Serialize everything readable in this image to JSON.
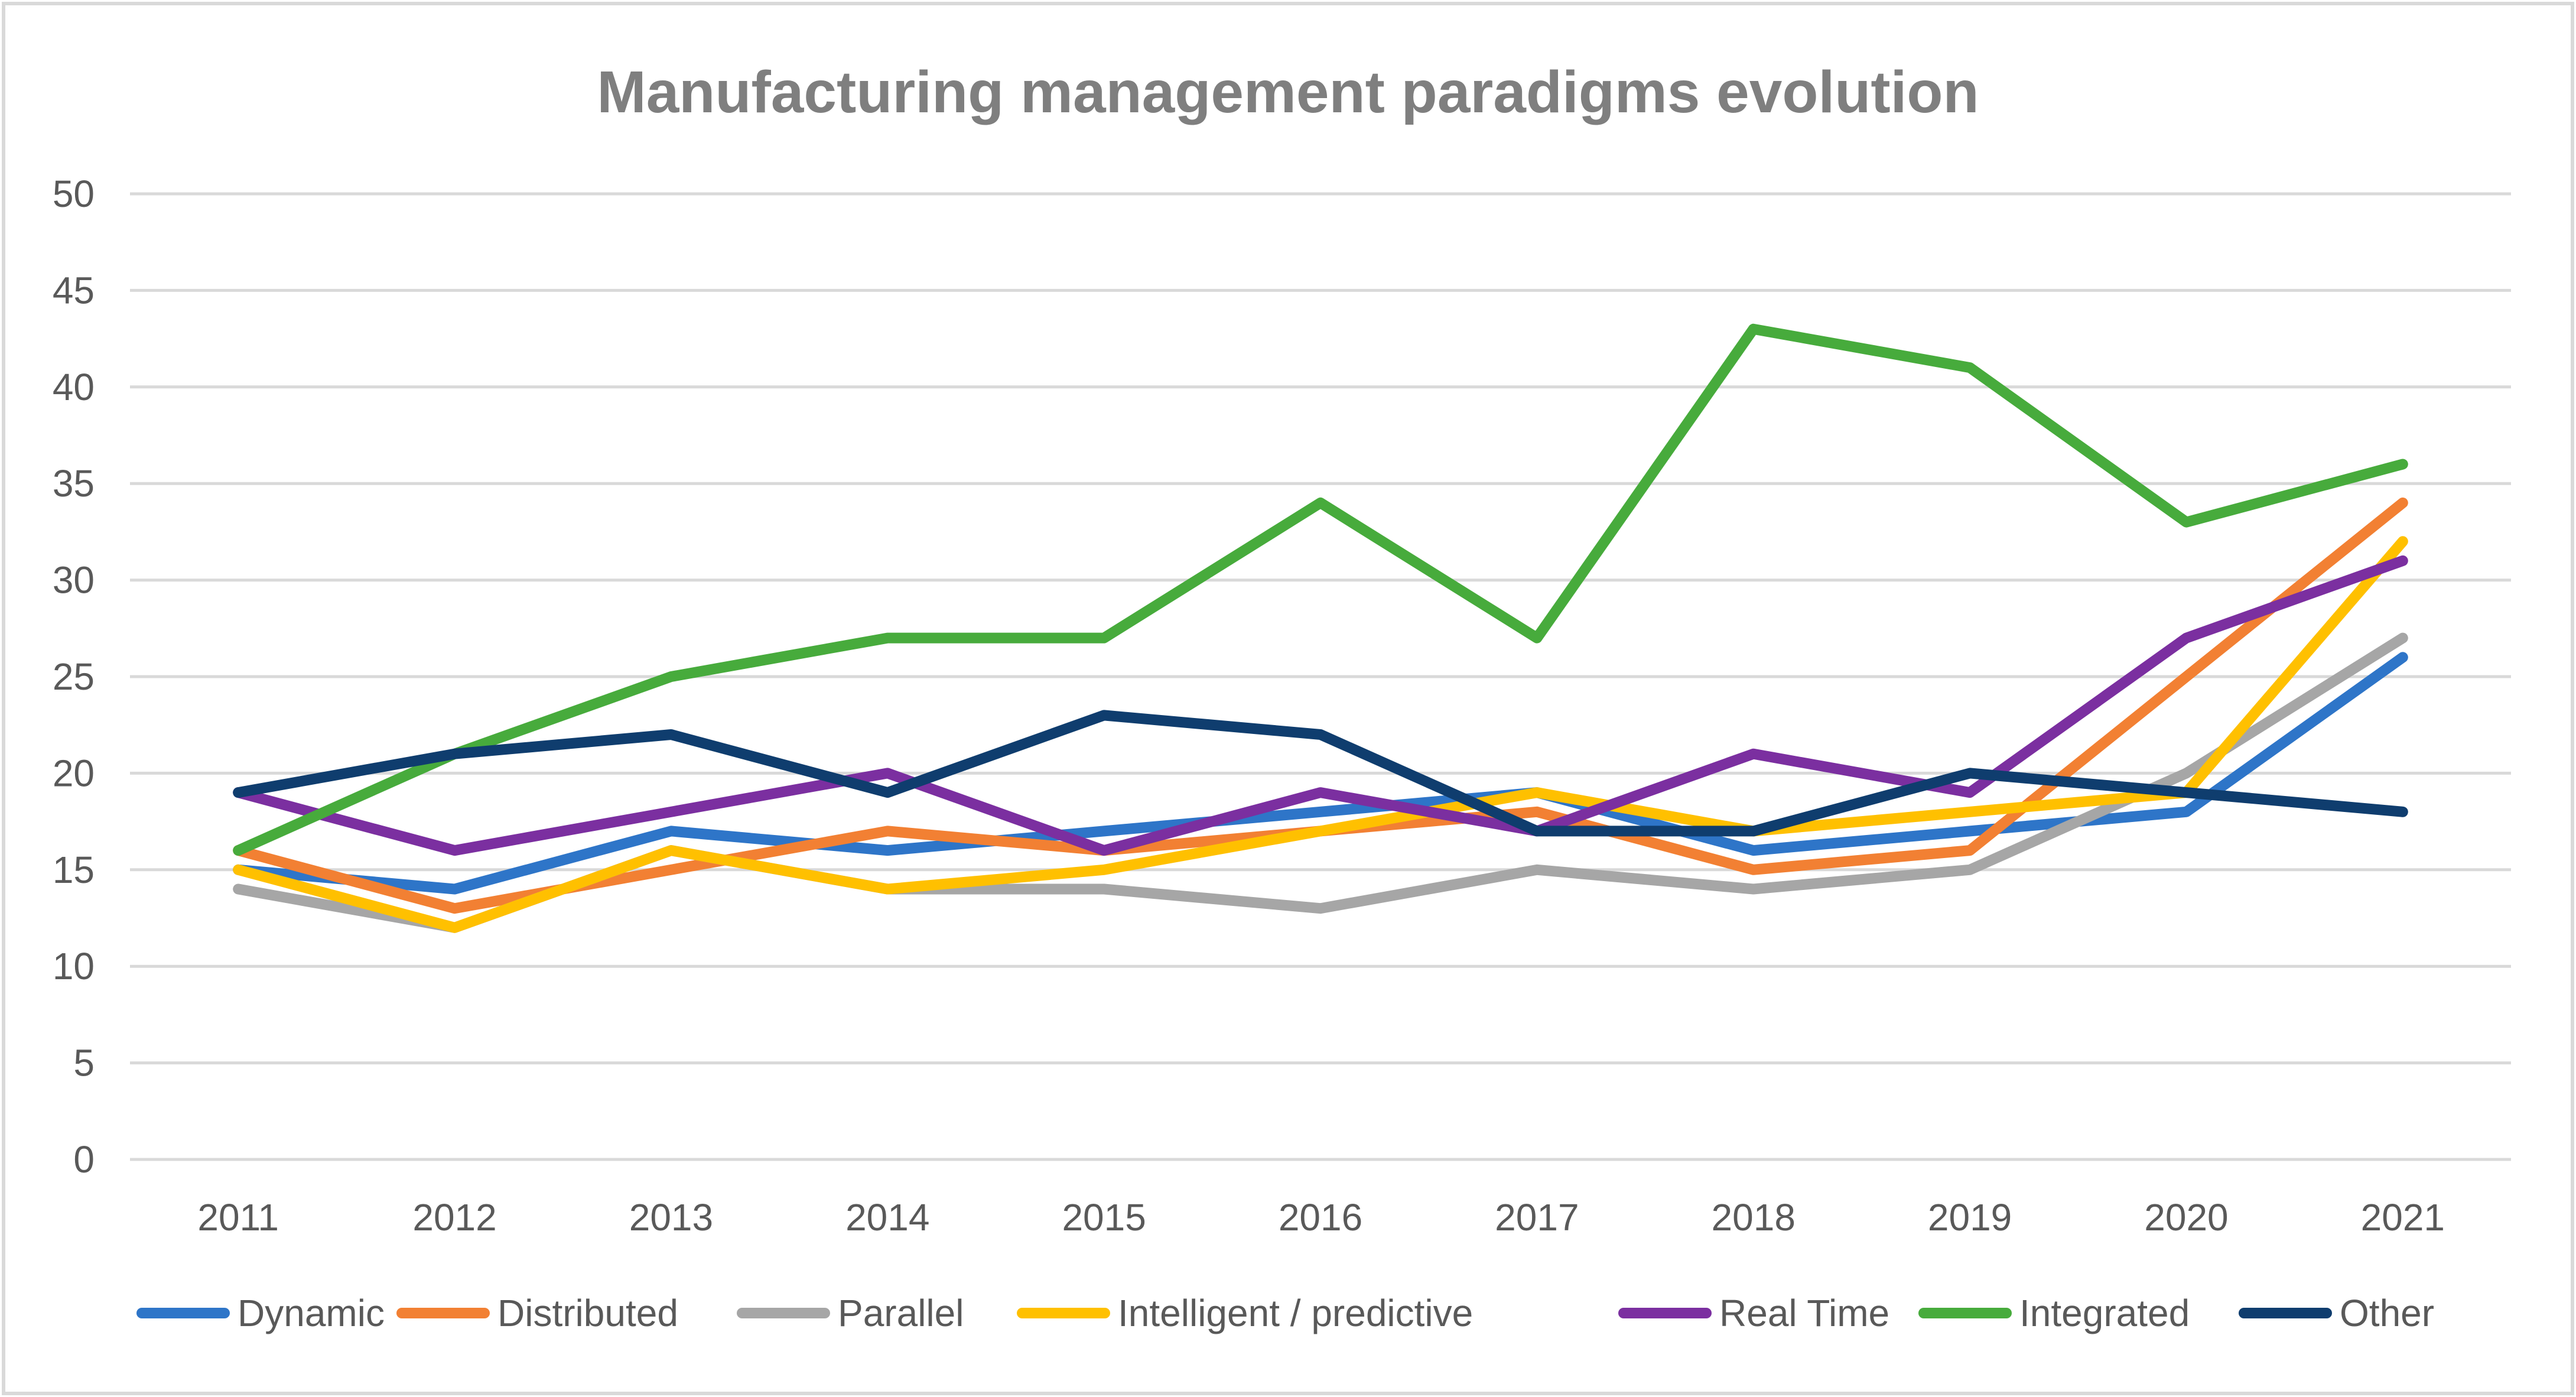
{
  "chart_data": {
    "type": "line",
    "title": "Manufacturing management paradigms evolution",
    "xlabel": "",
    "ylabel": "",
    "ylim": [
      0,
      50
    ],
    "yticks": [
      0,
      5,
      10,
      15,
      20,
      25,
      30,
      35,
      40,
      45,
      50
    ],
    "grid": true,
    "legend_position": "bottom",
    "categories": [
      "2011",
      "2012",
      "2013",
      "2014",
      "2015",
      "2016",
      "2017",
      "2018",
      "2019",
      "2020",
      "2021"
    ],
    "series": [
      {
        "name": "Dynamic",
        "color": "#2e75c8",
        "values": [
          15,
          14,
          17,
          16,
          17,
          18,
          19,
          16,
          17,
          18,
          26
        ]
      },
      {
        "name": "Distributed",
        "color": "#f28033",
        "values": [
          16,
          13,
          15,
          17,
          16,
          17,
          18,
          15,
          16,
          25,
          34
        ]
      },
      {
        "name": "Parallel",
        "color": "#a6a6a6",
        "values": [
          14,
          12,
          16,
          14,
          14,
          13,
          15,
          14,
          15,
          20,
          27
        ]
      },
      {
        "name": "Intelligent / predictive",
        "color": "#ffc000",
        "values": [
          15,
          12,
          16,
          14,
          15,
          17,
          19,
          17,
          18,
          19,
          32
        ]
      },
      {
        "name": "Real Time",
        "color": "#7b2fa0",
        "values": [
          19,
          16,
          18,
          20,
          16,
          19,
          17,
          21,
          19,
          27,
          31
        ]
      },
      {
        "name": "Integrated",
        "color": "#47ab3c",
        "values": [
          16,
          21,
          25,
          27,
          27,
          34,
          27,
          43,
          41,
          33,
          36
        ]
      },
      {
        "name": "Other",
        "color": "#0f3d6e",
        "values": [
          19,
          21,
          22,
          19,
          23,
          22,
          17,
          17,
          20,
          19,
          18
        ]
      }
    ]
  }
}
